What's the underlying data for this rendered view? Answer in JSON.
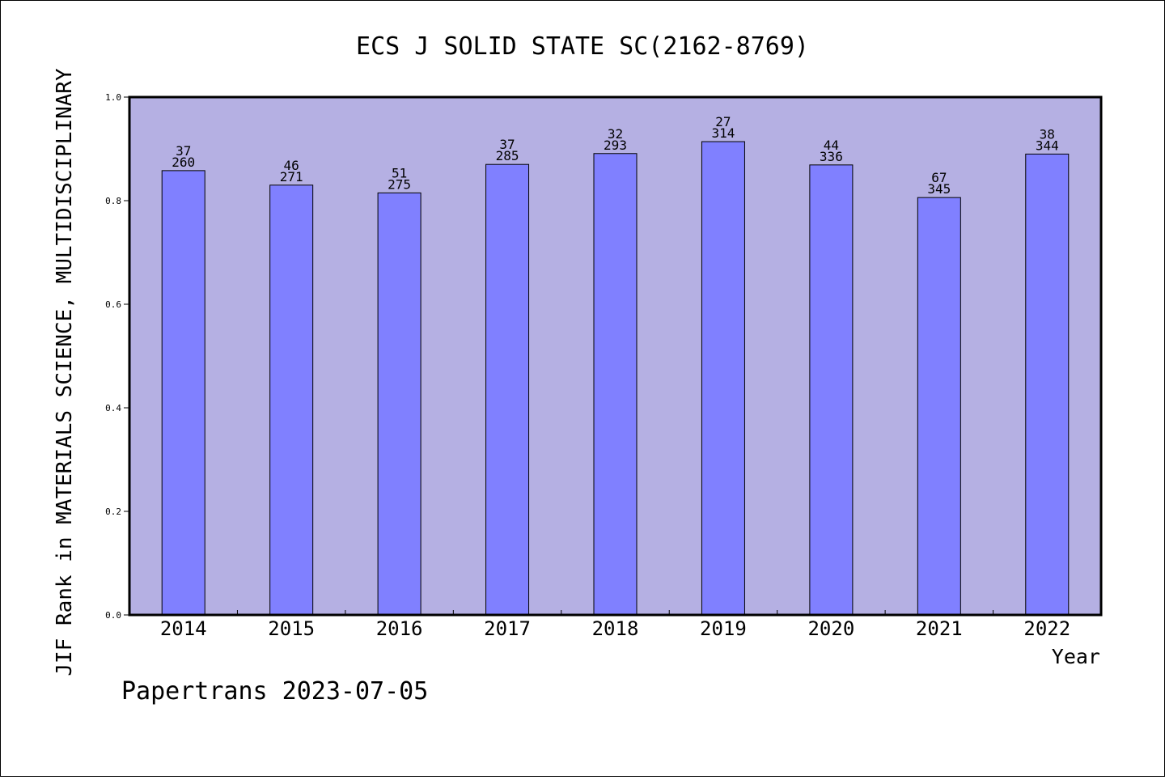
{
  "chart_data": {
    "type": "bar",
    "title": "ECS J SOLID STATE SC(2162-8769)",
    "xlabel": "Year",
    "ylabel": "JIF Rank in MATERIALS SCIENCE, MULTIDISCIPLINARY",
    "footer": "Papertrans 2023-07-05",
    "categories": [
      "2014",
      "2015",
      "2016",
      "2017",
      "2018",
      "2019",
      "2020",
      "2021",
      "2022"
    ],
    "values": [
      0.858,
      0.83,
      0.815,
      0.87,
      0.891,
      0.914,
      0.869,
      0.806,
      0.89
    ],
    "rank": [
      "37",
      "46",
      "51",
      "37",
      "32",
      "27",
      "44",
      "67",
      "38"
    ],
    "total": [
      "260",
      "271",
      "275",
      "285",
      "293",
      "314",
      "336",
      "345",
      "344"
    ],
    "ylim": [
      0,
      1.0
    ],
    "yticks": [
      "0.0",
      "0.2",
      "0.4",
      "0.6",
      "0.8",
      "1.0"
    ],
    "grid": false,
    "colors": {
      "plot_background": "#b5b0e3",
      "bar_fill": "#8080ff",
      "bar_stroke": "#000000",
      "text": "#000000"
    }
  }
}
